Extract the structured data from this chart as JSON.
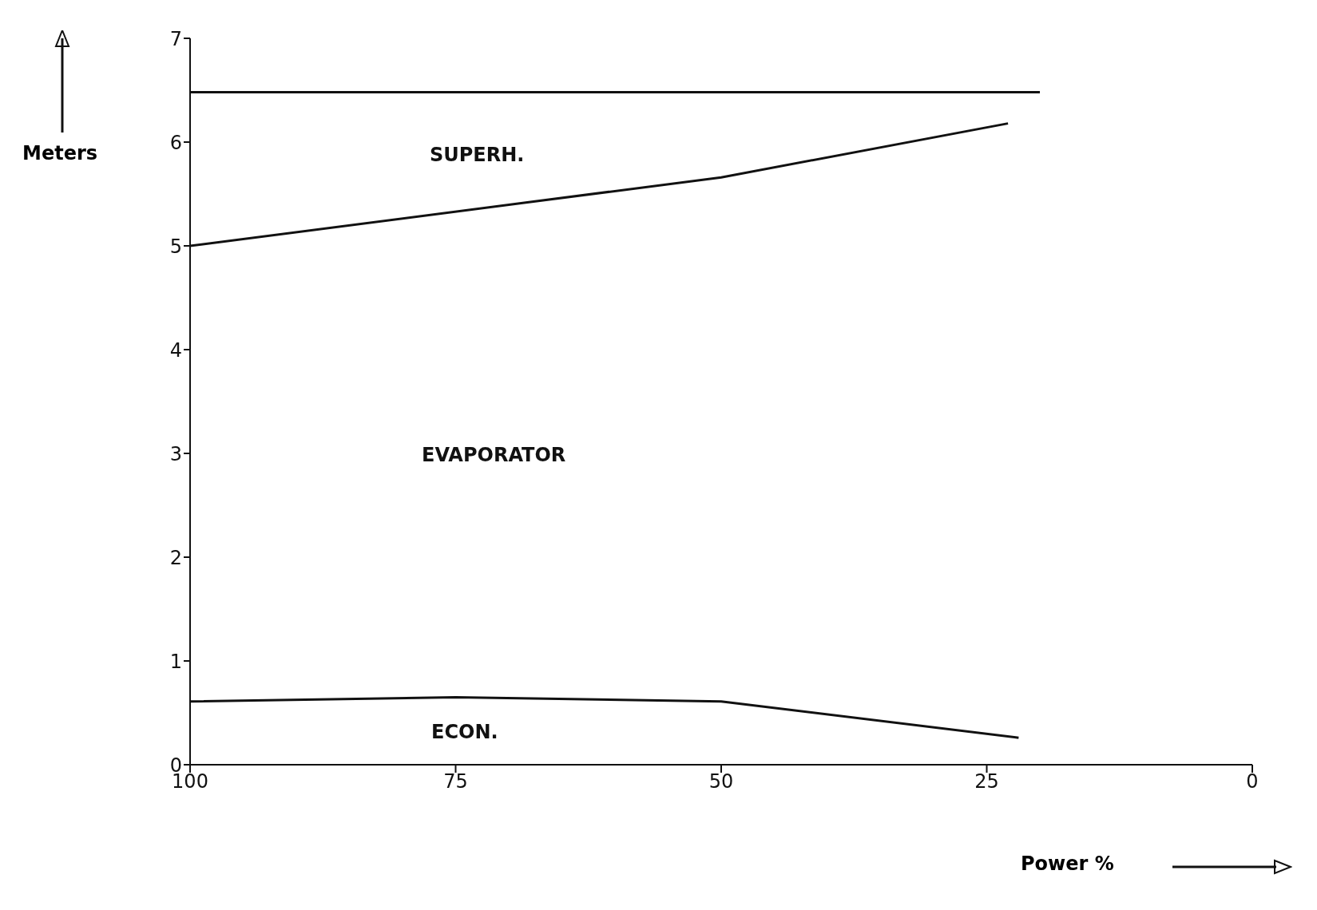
{
  "chart_data": {
    "type": "line",
    "xlabel": "Power %",
    "ylabel": "Meters",
    "xlim": [
      100,
      0
    ],
    "xticks": [
      100,
      75,
      50,
      25,
      0
    ],
    "ylim": [
      0,
      7
    ],
    "yticks": [
      0,
      1,
      2,
      3,
      4,
      5,
      6,
      7
    ],
    "grid": false,
    "legend": false,
    "marker": "none",
    "line_style": "solid",
    "series": [
      {
        "color": "#111111",
        "x": [
          100,
          20
        ],
        "values": [
          6.48,
          6.48
        ]
      },
      {
        "color": "#111111",
        "x": [
          100,
          50,
          23
        ],
        "values": [
          5.0,
          5.66,
          6.18
        ]
      },
      {
        "color": "#111111",
        "x": [
          100,
          75,
          50,
          22
        ],
        "values": [
          0.61,
          0.65,
          0.61,
          0.26
        ]
      }
    ],
    "annotations": [
      "SUPERH.",
      "EVAPORATOR",
      "ECON."
    ]
  }
}
